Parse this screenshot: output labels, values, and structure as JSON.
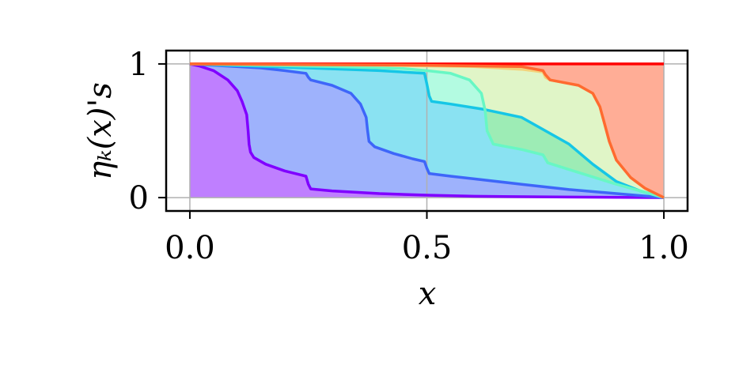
{
  "chart_data": {
    "type": "area",
    "xlabel": "x",
    "ylabel": "ηₖ(x)'s",
    "xlim": [
      -0.05,
      1.05
    ],
    "ylim": [
      -0.1,
      1.1
    ],
    "xticks": [
      {
        "value": 0.0,
        "label": "0.0"
      },
      {
        "value": 0.5,
        "label": "0.5"
      },
      {
        "value": 1.0,
        "label": "1.0"
      }
    ],
    "yticks": [
      {
        "value": 0,
        "label": "0"
      },
      {
        "value": 1,
        "label": "1"
      }
    ],
    "grid": true,
    "colors": [
      "#8000ff",
      "#3e66f9",
      "#16c6e6",
      "#68f7c4",
      "#c1eb8f",
      "#f9b362",
      "#ff5c2d",
      "#ff0000"
    ],
    "series": [
      {
        "values": [
          [
            0,
            1
          ],
          [
            0.02,
            0.985
          ],
          [
            0.05,
            0.95
          ],
          [
            0.08,
            0.88
          ],
          [
            0.1,
            0.8
          ],
          [
            0.11,
            0.72
          ],
          [
            0.12,
            0.62
          ],
          [
            0.123,
            0.5
          ],
          [
            0.125,
            0.4
          ],
          [
            0.128,
            0.34
          ],
          [
            0.135,
            0.3
          ],
          [
            0.16,
            0.25
          ],
          [
            0.2,
            0.2
          ],
          [
            0.245,
            0.16
          ],
          [
            0.25,
            0.1
          ],
          [
            0.255,
            0.065
          ],
          [
            0.3,
            0.05
          ],
          [
            0.4,
            0.03
          ],
          [
            0.5,
            0.018
          ],
          [
            0.6,
            0.01
          ],
          [
            0.8,
            0.004
          ],
          [
            1.0,
            0
          ]
        ]
      },
      {
        "values": [
          [
            0,
            1
          ],
          [
            0.05,
            0.99
          ],
          [
            0.15,
            0.97
          ],
          [
            0.2,
            0.95
          ],
          [
            0.245,
            0.93
          ],
          [
            0.25,
            0.9
          ],
          [
            0.255,
            0.88
          ],
          [
            0.3,
            0.84
          ],
          [
            0.34,
            0.78
          ],
          [
            0.36,
            0.7
          ],
          [
            0.372,
            0.6
          ],
          [
            0.375,
            0.5
          ],
          [
            0.378,
            0.42
          ],
          [
            0.39,
            0.38
          ],
          [
            0.43,
            0.33
          ],
          [
            0.47,
            0.29
          ],
          [
            0.495,
            0.27
          ],
          [
            0.5,
            0.22
          ],
          [
            0.505,
            0.18
          ],
          [
            0.55,
            0.16
          ],
          [
            0.6,
            0.14
          ],
          [
            0.7,
            0.1
          ],
          [
            0.8,
            0.06
          ],
          [
            0.9,
            0.03
          ],
          [
            1.0,
            0
          ]
        ]
      },
      {
        "values": [
          [
            0,
            1
          ],
          [
            0.25,
            0.97
          ],
          [
            0.4,
            0.95
          ],
          [
            0.495,
            0.93
          ],
          [
            0.5,
            0.85
          ],
          [
            0.505,
            0.76
          ],
          [
            0.51,
            0.72
          ],
          [
            0.55,
            0.7
          ],
          [
            0.62,
            0.66
          ],
          [
            0.7,
            0.6
          ],
          [
            0.75,
            0.5
          ],
          [
            0.8,
            0.4
          ],
          [
            0.85,
            0.25
          ],
          [
            0.9,
            0.12
          ],
          [
            0.95,
            0.05
          ],
          [
            1.0,
            0
          ]
        ]
      },
      {
        "values": [
          [
            0,
            1
          ],
          [
            0.3,
            0.98
          ],
          [
            0.45,
            0.965
          ],
          [
            0.5,
            0.95
          ],
          [
            0.55,
            0.93
          ],
          [
            0.59,
            0.88
          ],
          [
            0.615,
            0.78
          ],
          [
            0.623,
            0.65
          ],
          [
            0.627,
            0.5
          ],
          [
            0.64,
            0.4
          ],
          [
            0.7,
            0.36
          ],
          [
            0.745,
            0.32
          ],
          [
            0.755,
            0.26
          ],
          [
            0.8,
            0.21
          ],
          [
            0.9,
            0.1
          ],
          [
            0.95,
            0.05
          ],
          [
            1.0,
            0
          ]
        ]
      },
      {
        "values": [
          [
            0,
            1
          ],
          [
            0.4,
            0.99
          ],
          [
            0.6,
            0.98
          ],
          [
            0.7,
            0.96
          ],
          [
            0.745,
            0.94
          ],
          [
            0.75,
            0.9
          ],
          [
            0.76,
            0.88
          ],
          [
            0.82,
            0.84
          ],
          [
            0.85,
            0.78
          ],
          [
            0.865,
            0.68
          ],
          [
            0.875,
            0.55
          ],
          [
            0.885,
            0.42
          ],
          [
            0.9,
            0.28
          ],
          [
            0.93,
            0.15
          ],
          [
            0.96,
            0.07
          ],
          [
            1.0,
            0
          ]
        ]
      },
      {
        "values": [
          [
            0,
            1
          ],
          [
            1.0,
            1
          ]
        ]
      }
    ],
    "fill_between": [
      {
        "color": "#8000ff",
        "upper": "axis-top",
        "lower": "series_0"
      },
      {
        "color": "#3e66f9",
        "upper": "series_0",
        "lower": "series_1"
      },
      {
        "color": "#16c6e6",
        "upper": "series_1",
        "lower": "series_2"
      },
      {
        "color": "#68f7c4",
        "upper": "series_2",
        "lower": "series_3"
      },
      {
        "color": "#c1eb8f",
        "upper": "series_3",
        "lower": "series_4"
      },
      {
        "color": "#f9b362",
        "upper": "series_4",
        "lower": "axis-top"
      },
      {
        "color": "#ff5c2d",
        "upper": "series_4",
        "lower": "axis-top"
      },
      {
        "color": "#ff0000",
        "upper": "series_5",
        "lower": "series_5"
      }
    ]
  }
}
